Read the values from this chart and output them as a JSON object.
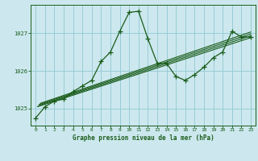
{
  "title": "Graphe pression niveau de la mer (hPa)",
  "bg_color": "#cce8ee",
  "grid_color": "#99ccd6",
  "line_color": "#1a5c1a",
  "xlim": [
    -0.5,
    23.5
  ],
  "ylim": [
    1024.55,
    1027.75
  ],
  "xticks": [
    0,
    1,
    2,
    3,
    4,
    5,
    6,
    7,
    8,
    9,
    10,
    11,
    12,
    13,
    14,
    15,
    16,
    17,
    18,
    19,
    20,
    21,
    22,
    23
  ],
  "yticks": [
    1025,
    1026,
    1027
  ],
  "main_x": [
    0,
    1,
    2,
    3,
    4,
    5,
    6,
    7,
    8,
    9,
    10,
    11,
    12,
    13,
    14,
    15,
    16,
    17,
    18,
    19,
    20,
    21,
    22,
    23
  ],
  "main_y": [
    1024.75,
    1025.05,
    1025.2,
    1025.25,
    1025.45,
    1025.6,
    1025.75,
    1026.25,
    1026.5,
    1027.05,
    1027.55,
    1027.58,
    1026.85,
    1026.2,
    1026.2,
    1025.85,
    1025.75,
    1025.9,
    1026.1,
    1026.35,
    1026.5,
    1027.05,
    1026.9,
    1026.9
  ],
  "trend_lines": [
    {
      "x0": 0.2,
      "y0": 1025.05,
      "x1": 23,
      "y1": 1026.88
    },
    {
      "x0": 0.3,
      "y0": 1025.08,
      "x1": 23,
      "y1": 1026.93
    },
    {
      "x0": 0.4,
      "y0": 1025.11,
      "x1": 23,
      "y1": 1026.98
    },
    {
      "x0": 0.5,
      "y0": 1025.14,
      "x1": 23,
      "y1": 1027.03
    }
  ]
}
